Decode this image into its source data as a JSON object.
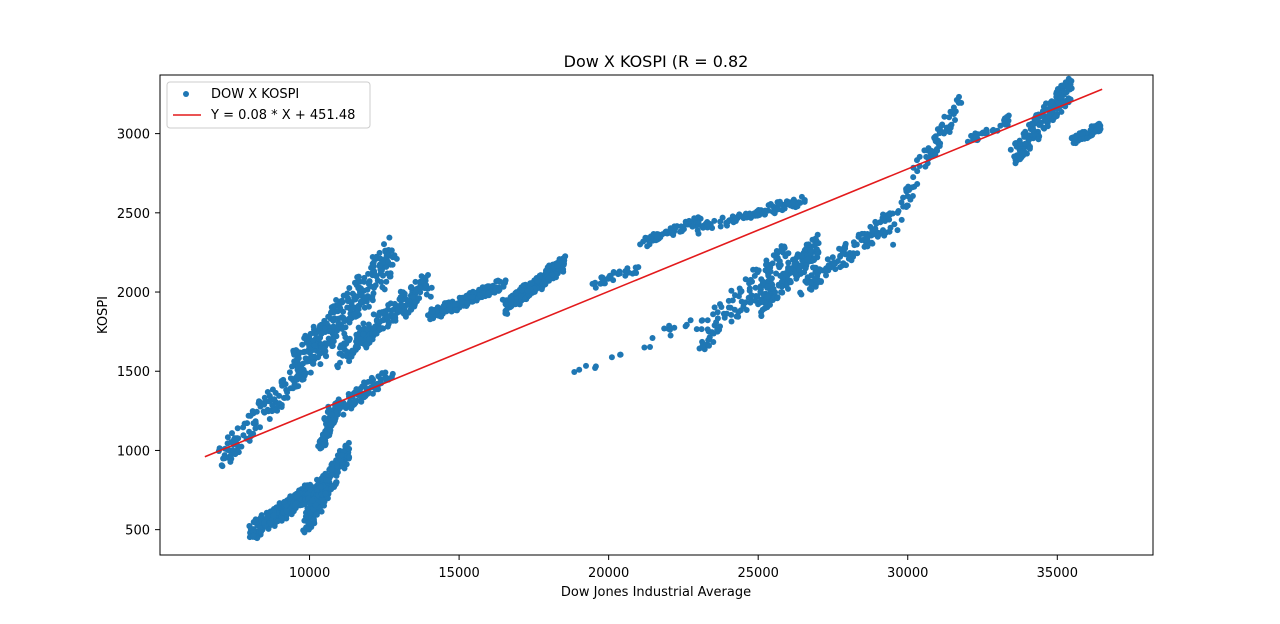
{
  "chart_data": {
    "type": "scatter",
    "title": "Dow X KOSPI (R = 0.82",
    "xlabel": "Dow Jones Industrial Average",
    "ylabel": "KOSPI",
    "xlim": [
      5000,
      38200
    ],
    "ylim": [
      340,
      3370
    ],
    "x_ticks": [
      10000,
      15000,
      20000,
      25000,
      30000,
      35000
    ],
    "y_ticks": [
      500,
      1000,
      1500,
      2000,
      2500,
      3000
    ],
    "grid": false,
    "legend_position": "top-left",
    "series": [
      {
        "name": "DOW X KOSPI",
        "kind": "scatter",
        "color": "#1f77b4",
        "clusters": [
          [
            8000,
            480,
            10500,
            800,
            260
          ],
          [
            9800,
            520,
            11300,
            1000,
            180
          ],
          [
            10300,
            1000,
            11000,
            1300,
            90
          ],
          [
            7000,
            950,
            9500,
            1450,
            110
          ],
          [
            9500,
            1500,
            12800,
            2230,
            320
          ],
          [
            10500,
            1200,
            12800,
            1500,
            90
          ],
          [
            11000,
            1600,
            14000,
            2050,
            200
          ],
          [
            14000,
            1850,
            16500,
            2050,
            180
          ],
          [
            16500,
            1900,
            18500,
            2180,
            220
          ],
          [
            18500,
            1450,
            20500,
            1600,
            8
          ],
          [
            19500,
            2050,
            21000,
            2150,
            35
          ],
          [
            21000,
            2300,
            23000,
            2450,
            60
          ],
          [
            21000,
            1650,
            23000,
            1850,
            12
          ],
          [
            23000,
            1700,
            26000,
            2250,
            120
          ],
          [
            23000,
            2400,
            26500,
            2580,
            90
          ],
          [
            25000,
            1900,
            27000,
            2300,
            170
          ],
          [
            26500,
            2050,
            29500,
            2450,
            130
          ],
          [
            29500,
            2350,
            30500,
            2850,
            30
          ],
          [
            30500,
            2800,
            31800,
            3200,
            50
          ],
          [
            32000,
            2950,
            33500,
            3100,
            30
          ],
          [
            33500,
            2850,
            35500,
            3300,
            170
          ],
          [
            35500,
            2950,
            36500,
            3050,
            60
          ]
        ]
      },
      {
        "name": "Y = 0.08 * X + 451.48",
        "kind": "line",
        "color": "#e31a1c",
        "x": [
          6500,
          36500
        ],
        "y": [
          960,
          3280
        ]
      }
    ]
  }
}
